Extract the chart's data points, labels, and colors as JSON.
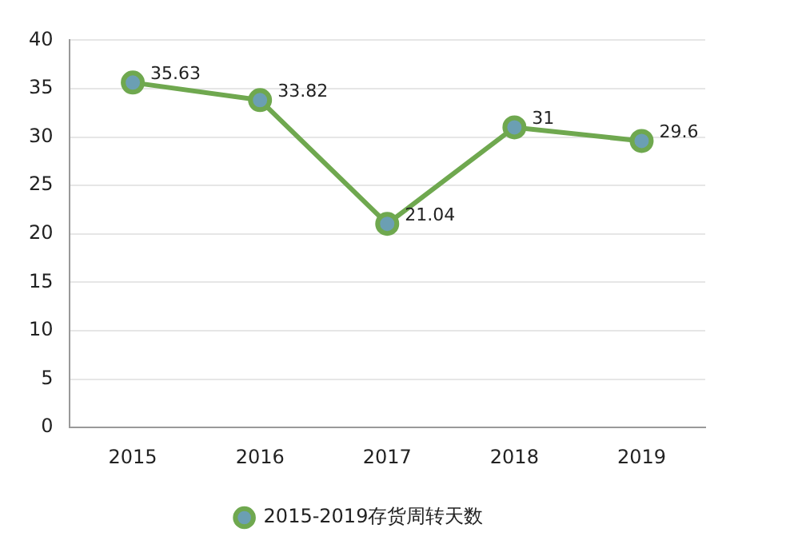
{
  "chart_data": {
    "type": "line",
    "categories": [
      "2015",
      "2016",
      "2017",
      "2018",
      "2019"
    ],
    "series": [
      {
        "name": "2015-2019存货周转天数",
        "color": "#6fa84f",
        "values": [
          35.63,
          33.82,
          21.04,
          31,
          29.6
        ]
      }
    ],
    "ylim": [
      0,
      40
    ],
    "yticks": [
      0,
      5,
      10,
      15,
      20,
      25,
      30,
      35,
      40
    ],
    "grid": "y",
    "legend": "bottom",
    "marker": "circle",
    "line_style": "solid",
    "data_labels": true
  }
}
